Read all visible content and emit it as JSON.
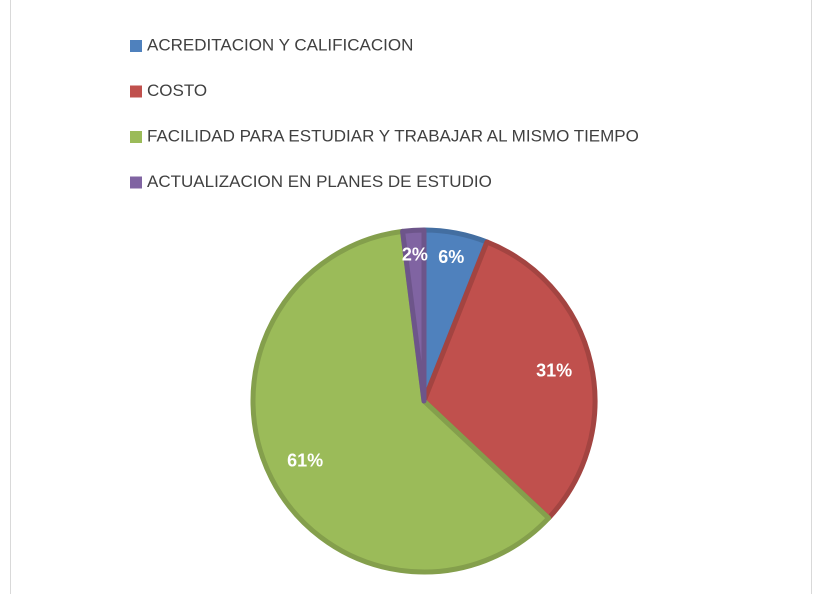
{
  "chart_data": {
    "type": "pie",
    "categories": [
      "ACREDITACION Y CALIFICACION",
      "COSTO",
      "FACILIDAD PARA ESTUDIAR Y TRABAJAR AL MISMO TIEMPO",
      "ACTUALIZACION EN PLANES DE ESTUDIO"
    ],
    "values": [
      6,
      31,
      61,
      2
    ],
    "value_labels": [
      "6%",
      "31%",
      "61%",
      "2%"
    ],
    "colors": [
      "#4f81bd",
      "#c0504d",
      "#9bbb59",
      "#8064a2"
    ],
    "legend": "top"
  }
}
